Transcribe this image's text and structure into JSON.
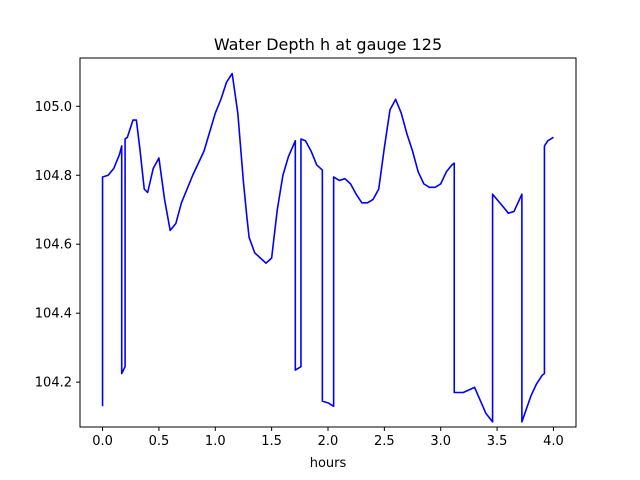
{
  "chart_data": {
    "type": "line",
    "title": "Water Depth h at gauge 125",
    "xlabel": "hours",
    "ylabel": "",
    "xlim": [
      -0.2,
      4.2
    ],
    "ylim": [
      104.07,
      105.14
    ],
    "xticks": [
      0.0,
      0.5,
      1.0,
      1.5,
      2.0,
      2.5,
      3.0,
      3.5,
      4.0
    ],
    "xtick_labels": [
      "0.0",
      "0.5",
      "1.0",
      "1.5",
      "2.0",
      "2.5",
      "3.0",
      "3.5",
      "4.0"
    ],
    "yticks": [
      104.2,
      104.4,
      104.6,
      104.8,
      105.0
    ],
    "ytick_labels": [
      "104.2",
      "104.4",
      "104.6",
      "104.8",
      "105.0"
    ],
    "grid": false,
    "series": [
      {
        "color": "#0000ff",
        "x": [
          0.0,
          0.0,
          0.05,
          0.1,
          0.15,
          0.17,
          0.17,
          0.2,
          0.2,
          0.22,
          0.27,
          0.3,
          0.33,
          0.37,
          0.4,
          0.45,
          0.5,
          0.55,
          0.6,
          0.65,
          0.7,
          0.8,
          0.9,
          1.0,
          1.05,
          1.1,
          1.15,
          1.2,
          1.25,
          1.28,
          1.3,
          1.35,
          1.4,
          1.45,
          1.5,
          1.55,
          1.6,
          1.65,
          1.71,
          1.71,
          1.76,
          1.76,
          1.8,
          1.85,
          1.9,
          1.95,
          1.95,
          2.0,
          2.05,
          2.05,
          2.1,
          2.15,
          2.2,
          2.25,
          2.3,
          2.35,
          2.4,
          2.45,
          2.5,
          2.55,
          2.6,
          2.65,
          2.7,
          2.75,
          2.8,
          2.85,
          2.9,
          2.95,
          3.0,
          3.05,
          3.1,
          3.12,
          3.12,
          3.2,
          3.3,
          3.4,
          3.46,
          3.46,
          3.55,
          3.6,
          3.65,
          3.72,
          3.72,
          3.8,
          3.85,
          3.9,
          3.92,
          3.92,
          3.95,
          4.0
        ],
        "y": [
          104.13,
          104.795,
          104.8,
          104.82,
          104.86,
          104.885,
          104.225,
          104.245,
          104.905,
          104.91,
          104.96,
          104.96,
          104.88,
          104.76,
          104.75,
          104.82,
          104.85,
          104.73,
          104.64,
          104.66,
          104.72,
          104.8,
          104.87,
          104.98,
          105.02,
          105.07,
          105.095,
          104.98,
          104.78,
          104.68,
          104.62,
          104.575,
          104.56,
          104.545,
          104.56,
          104.7,
          104.8,
          104.855,
          104.9,
          104.235,
          104.245,
          104.905,
          104.9,
          104.87,
          104.83,
          104.815,
          104.145,
          104.14,
          104.13,
          104.795,
          104.785,
          104.79,
          104.775,
          104.745,
          104.72,
          104.72,
          104.73,
          104.76,
          104.88,
          104.99,
          105.02,
          104.98,
          104.92,
          104.87,
          104.81,
          104.775,
          104.765,
          104.765,
          104.775,
          104.81,
          104.83,
          104.835,
          104.17,
          104.17,
          104.185,
          104.11,
          104.085,
          104.745,
          104.71,
          104.69,
          104.695,
          104.745,
          104.085,
          104.16,
          104.195,
          104.22,
          104.225,
          104.885,
          104.9,
          104.91
        ]
      }
    ]
  }
}
